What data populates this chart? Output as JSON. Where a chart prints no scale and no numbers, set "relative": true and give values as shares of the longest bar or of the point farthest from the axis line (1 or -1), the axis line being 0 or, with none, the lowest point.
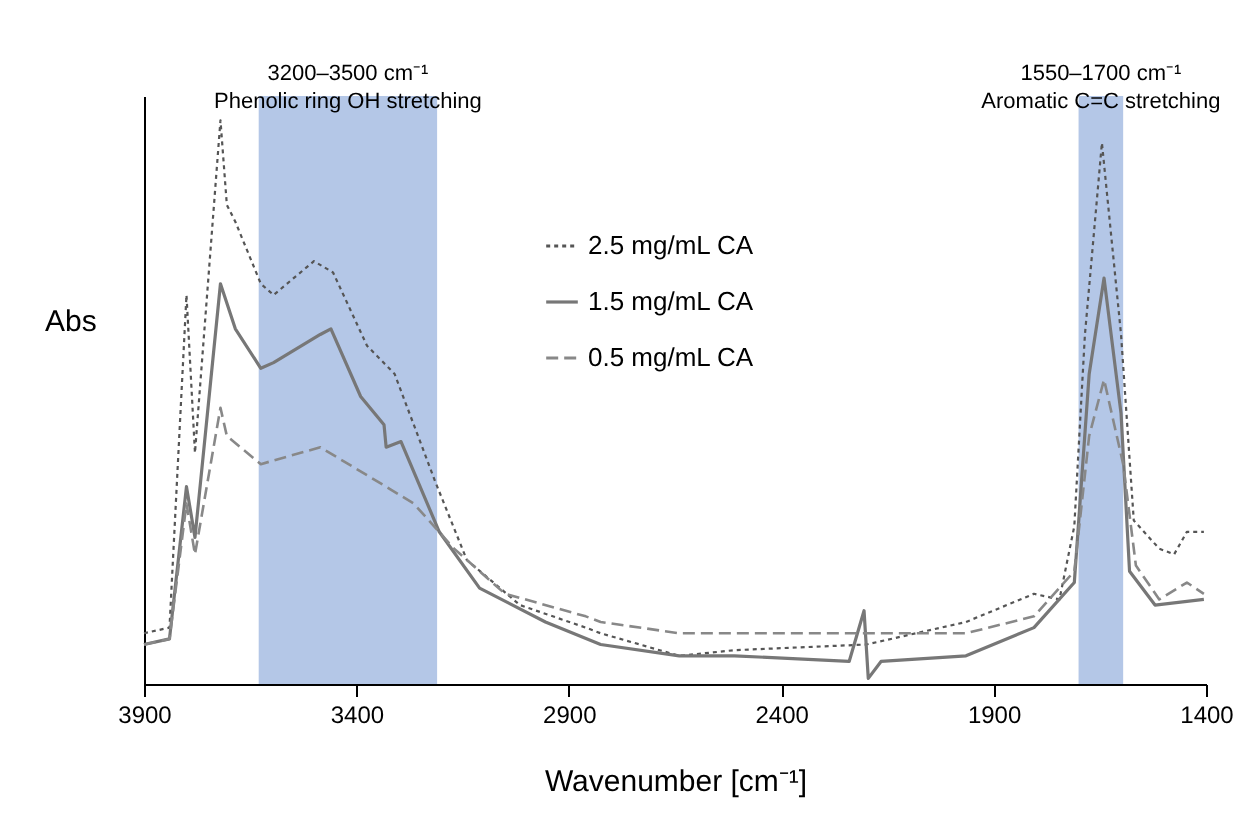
{
  "chart_data": {
    "type": "line",
    "relative": true,
    "xlabel": "Wavenumber [cm⁻¹]",
    "ylabel": "Abs",
    "xlim": [
      3900,
      1400
    ],
    "xticks": [
      3900,
      3400,
      2900,
      2400,
      1900,
      1400
    ],
    "legend": "top",
    "bands": [
      {
        "axis": "x",
        "from": 3630,
        "to": 3210,
        "label": "3200–3500 cm⁻¹\nPhenolic ring OH stretching",
        "color": "#b4c7e7"
      },
      {
        "axis": "x",
        "from": 1700,
        "to": 1595,
        "label": "1550–1700 cm⁻¹\nAromatic C=C stretching",
        "color": "#b4c7e7"
      }
    ],
    "series": [
      {
        "name": "2.5 mg/mL  CA",
        "color": "#555555",
        "line_style": "dotted",
        "x": [
          3900,
          3840,
          3800,
          3780,
          3720,
          3705,
          3685,
          3625,
          3595,
          3500,
          3455,
          3375,
          3310,
          3215,
          3140,
          3015,
          2860,
          2825,
          2640,
          2510,
          2200,
          1965,
          1805,
          1745,
          1710,
          1685,
          1645,
          1600,
          1570,
          1510,
          1475,
          1445,
          1405
        ],
        "values": [
          0.09,
          0.1,
          0.69,
          0.41,
          1.0,
          0.85,
          0.82,
          0.71,
          0.69,
          0.75,
          0.73,
          0.6,
          0.55,
          0.36,
          0.22,
          0.14,
          0.1,
          0.09,
          0.05,
          0.06,
          0.07,
          0.11,
          0.16,
          0.15,
          0.28,
          0.62,
          0.96,
          0.62,
          0.29,
          0.24,
          0.23,
          0.27,
          0.27
        ]
      },
      {
        "name": "1.5 mg/mL  CA",
        "color": "#777777",
        "line_style": "solid",
        "x": [
          3900,
          3840,
          3800,
          3780,
          3720,
          3685,
          3625,
          3595,
          3485,
          3460,
          3390,
          3335,
          3330,
          3295,
          3205,
          3110,
          2955,
          2825,
          2640,
          2510,
          2240,
          2205,
          2195,
          2165,
          1965,
          1805,
          1710,
          1675,
          1640,
          1600,
          1580,
          1520,
          1405
        ],
        "values": [
          0.07,
          0.08,
          0.35,
          0.26,
          0.71,
          0.63,
          0.56,
          0.57,
          0.62,
          0.63,
          0.51,
          0.46,
          0.42,
          0.43,
          0.27,
          0.17,
          0.11,
          0.07,
          0.05,
          0.05,
          0.04,
          0.13,
          0.01,
          0.04,
          0.05,
          0.1,
          0.18,
          0.55,
          0.72,
          0.48,
          0.2,
          0.14,
          0.15
        ]
      },
      {
        "name": "0.5 mg/mL  CA",
        "color": "#888888",
        "line_style": "dashed",
        "x": [
          3900,
          3840,
          3800,
          3780,
          3720,
          3705,
          3625,
          3485,
          3330,
          3265,
          3170,
          3050,
          2860,
          2825,
          2640,
          2510,
          2200,
          1965,
          1805,
          1710,
          1675,
          1640,
          1595,
          1565,
          1510,
          1445,
          1405
        ],
        "values": [
          0.07,
          0.08,
          0.32,
          0.23,
          0.49,
          0.44,
          0.39,
          0.42,
          0.35,
          0.32,
          0.24,
          0.16,
          0.12,
          0.11,
          0.09,
          0.09,
          0.09,
          0.09,
          0.12,
          0.2,
          0.44,
          0.54,
          0.39,
          0.21,
          0.15,
          0.18,
          0.16
        ]
      }
    ]
  }
}
